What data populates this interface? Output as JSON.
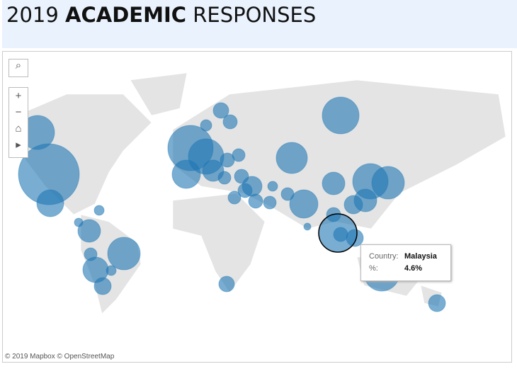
{
  "header": {
    "title": {
      "year": "2019",
      "bold": "ACADEMIC",
      "rest": "RESPONSES"
    }
  },
  "map": {
    "attribution": "© 2019 Mapbox © OpenStreetMap",
    "tooltip": {
      "fields": [
        {
          "label": "Country:",
          "value": "Malaysia"
        },
        {
          "label": "%:",
          "value": "4.6%"
        }
      ]
    }
  }
}
